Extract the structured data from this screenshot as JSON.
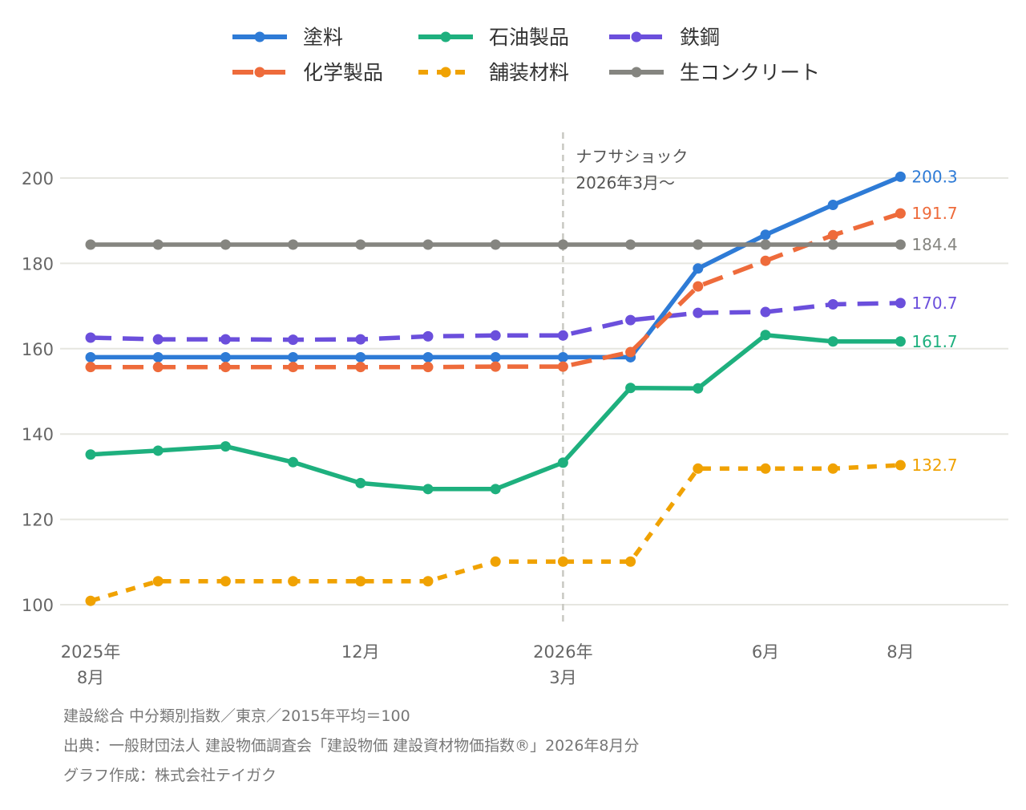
{
  "chart_data": {
    "type": "line",
    "x": [
      "2025-08",
      "2025-09",
      "2025-10",
      "2025-11",
      "2025-12",
      "2026-01",
      "2026-02",
      "2026-03",
      "2026-04",
      "2026-05",
      "2026-06",
      "2026-07",
      "2026-08"
    ],
    "xticks": [
      {
        "index": 0,
        "label": "2025年\n8月"
      },
      {
        "index": 4,
        "label": "12月"
      },
      {
        "index": 7,
        "label": "2026年\n3月"
      },
      {
        "index": 10,
        "label": "6月"
      },
      {
        "index": 12,
        "label": "8月"
      }
    ],
    "yticks": [
      "100",
      "120",
      "140",
      "160",
      "180",
      "200"
    ],
    "ylim": [
      94,
      212
    ],
    "grid": true,
    "legend_position": "top",
    "series": [
      {
        "name": "塗料",
        "color": "#2e7bd6",
        "dash": "solid",
        "end_label": "200.3",
        "values": [
          158,
          158,
          158,
          158,
          158,
          158,
          158,
          158,
          158,
          178.8,
          186.7,
          193.7,
          200.3
        ]
      },
      {
        "name": "石油製品",
        "color": "#1eb07e",
        "dash": "solid",
        "end_label": "161.7",
        "values": [
          135.2,
          136.1,
          137.1,
          133.4,
          128.5,
          127.1,
          127.1,
          133.3,
          150.8,
          150.7,
          163.2,
          161.7,
          161.7
        ]
      },
      {
        "name": "鉄鋼",
        "color": "#6b4fdc",
        "dash": "long",
        "end_label": "170.7",
        "values": [
          162.6,
          162.2,
          162.2,
          162.1,
          162.2,
          162.9,
          163.1,
          163.1,
          166.7,
          168.4,
          168.6,
          170.4,
          170.7
        ]
      },
      {
        "name": "化学製品",
        "color": "#ee6b3b",
        "dash": "long",
        "end_label": "191.7",
        "values": [
          155.7,
          155.7,
          155.7,
          155.7,
          155.7,
          155.7,
          155.8,
          155.8,
          159.2,
          174.6,
          180.6,
          186.6,
          191.7
        ]
      },
      {
        "name": "舗装材料",
        "color": "#f0a202",
        "dash": "short",
        "end_label": "132.7",
        "values": [
          100.9,
          105.5,
          105.5,
          105.5,
          105.5,
          105.5,
          110.1,
          110.1,
          110.1,
          131.9,
          131.9,
          131.9,
          132.7
        ]
      },
      {
        "name": "生コンクリート",
        "color": "#858580",
        "dash": "solid",
        "end_label": "184.4",
        "values": [
          184.4,
          184.4,
          184.4,
          184.4,
          184.4,
          184.4,
          184.4,
          184.4,
          184.4,
          184.4,
          184.4,
          184.4,
          184.4
        ]
      }
    ],
    "annotation": {
      "line1": "ナフサショック",
      "line2": "2026年3月〜",
      "x_index": 7
    }
  },
  "footnotes": {
    "line1": "建設総合 中分類別指数／東京／2015年平均＝100",
    "line2": "出典：一般財団法人 建設物価調査会「建設物価 建設資材物価指数®」2026年8月分",
    "line3": "グラフ作成：株式会社テイガク"
  }
}
